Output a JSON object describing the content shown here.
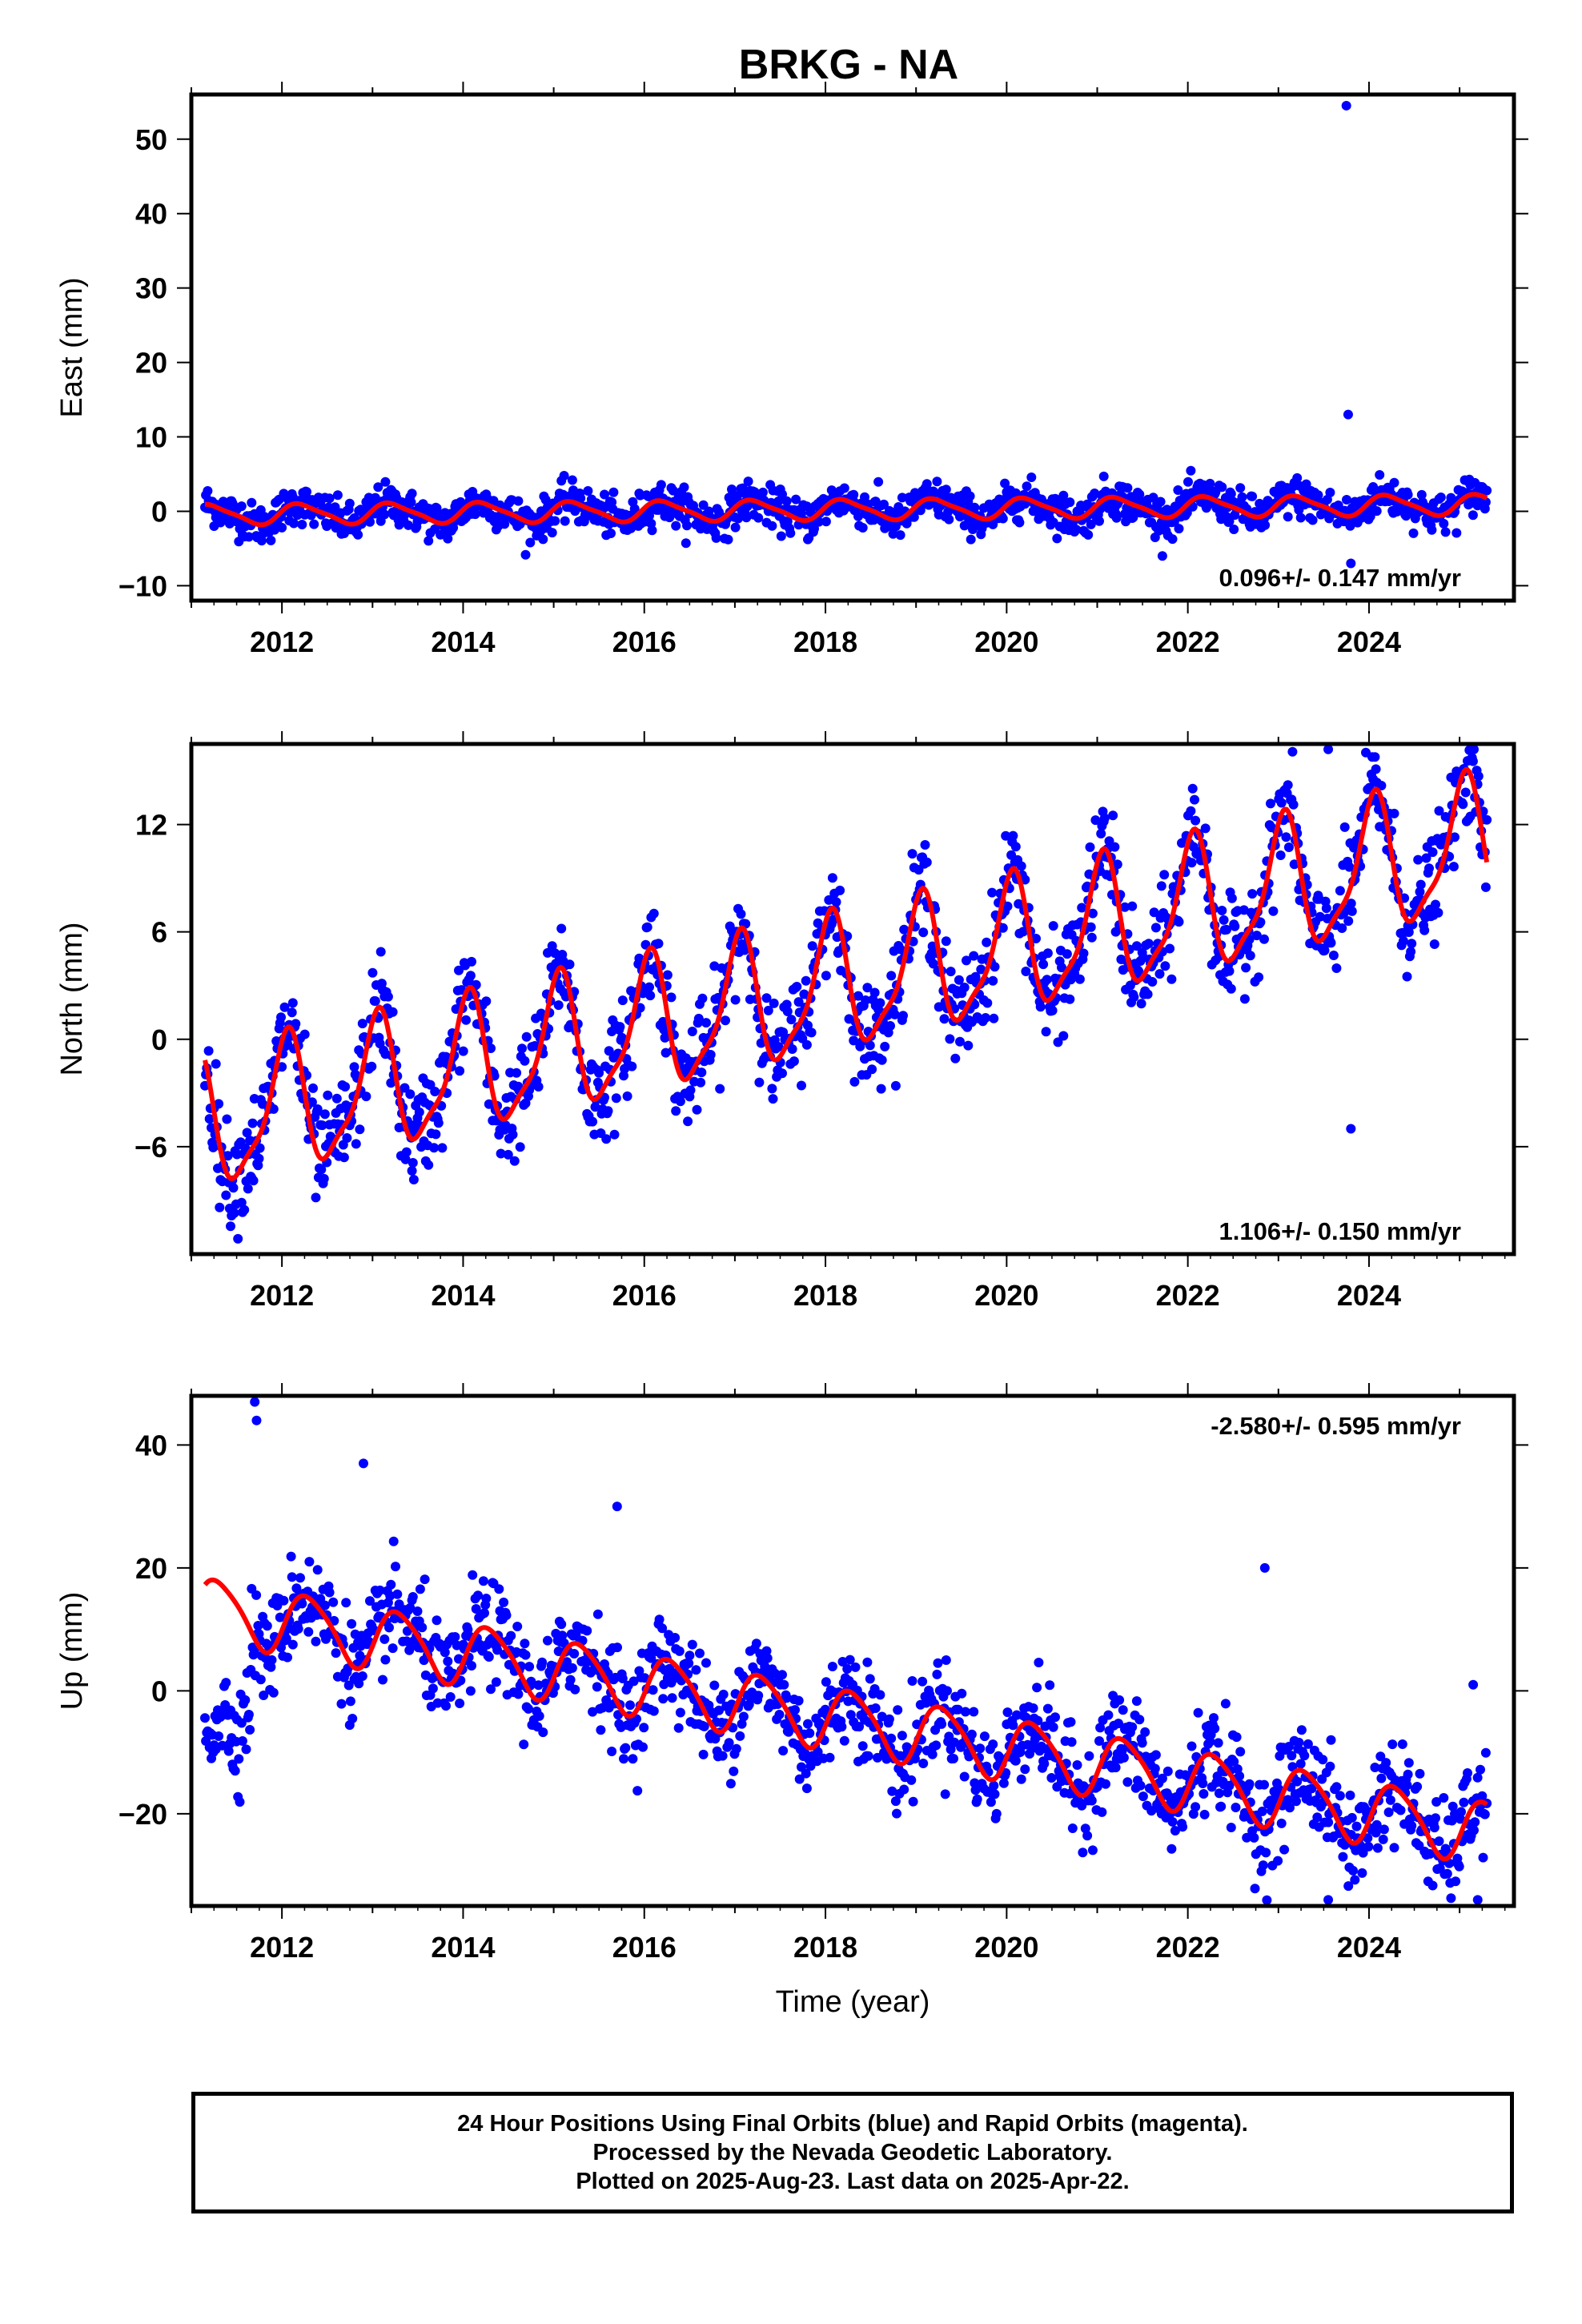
{
  "title": "BRKG - NA",
  "colors": {
    "data": "#0000ff",
    "model": "#ff0000",
    "frame": "#000000"
  },
  "footer": {
    "line1": "24 Hour Positions Using Final Orbits (blue) and Rapid Orbits (magenta).",
    "line2": "Processed by the Nevada Geodetic Laboratory.",
    "line3": "Plotted on 2025-Aug-23. Last data on 2025-Apr-22."
  },
  "chart_data": [
    {
      "type": "scatter",
      "ylabel": "East (mm)",
      "xlabel": "",
      "xlim": [
        2011.0,
        2025.6
      ],
      "ylim": [
        -12,
        56
      ],
      "xticks": [
        2012,
        2014,
        2016,
        2018,
        2020,
        2022,
        2024
      ],
      "yticks": [
        -10,
        0,
        10,
        20,
        30,
        40,
        50
      ],
      "rate_text": "0.096+/- 0.147 mm/yr",
      "rate_position": "bottom-right",
      "data_span": [
        2011.15,
        2025.3
      ],
      "model": {
        "offset": -0.45,
        "rate": 0.096,
        "annual_amp": 1.3,
        "annual_phase": 0.2,
        "semi_amp": 0.3,
        "semi_phase": 0.5
      },
      "scatter_sd": 1.3,
      "outliers": [
        [
          2023.75,
          54.5
        ],
        [
          2023.77,
          13
        ],
        [
          2023.8,
          -7
        ]
      ]
    },
    {
      "type": "scatter",
      "ylabel": "North (mm)",
      "xlabel": "",
      "xlim": [
        2011.0,
        2025.6
      ],
      "ylim": [
        -12,
        16.5
      ],
      "xticks": [
        2012,
        2014,
        2016,
        2018,
        2020,
        2022,
        2024
      ],
      "yticks": [
        -6,
        0,
        6,
        12
      ],
      "rate_text": "1.106+/- 0.150 mm/yr",
      "rate_position": "bottom-right",
      "data_span": [
        2011.15,
        2025.3
      ],
      "model": {
        "offset": -4.8,
        "rate": 1.106,
        "annual_amp": 3.6,
        "annual_phase": 1.3,
        "semi_amp": 1.0,
        "semi_phase": 0.3
      },
      "scatter_sd": 1.4,
      "outliers": [
        [
          2023.55,
          16.2
        ],
        [
          2023.8,
          -5
        ]
      ]
    },
    {
      "type": "scatter",
      "ylabel": "Up (mm)",
      "xlabel": "Time (year)",
      "xlim": [
        2011.0,
        2025.6
      ],
      "ylim": [
        -35,
        48
      ],
      "xticks": [
        2012,
        2014,
        2016,
        2018,
        2020,
        2022,
        2024
      ],
      "yticks": [
        -20,
        0,
        20,
        40
      ],
      "rate_text": "-2.580+/- 0.595 mm/yr",
      "rate_position": "top-right",
      "data_span": [
        2011.15,
        2025.3
      ],
      "model": {
        "offset": 13.5,
        "rate": -2.58,
        "annual_amp": 5.0,
        "annual_phase": -0.3,
        "semi_amp": 0.8,
        "semi_phase": 0.0
      },
      "scatter_sd": 4.0,
      "early_segment": {
        "end": 2011.65,
        "offset": -5.0
      },
      "outliers": [
        [
          2011.7,
          47
        ],
        [
          2011.72,
          44
        ],
        [
          2012.9,
          37
        ],
        [
          2015.7,
          30
        ],
        [
          2022.85,
          20
        ],
        [
          2023.55,
          -34
        ],
        [
          2025.15,
          1
        ],
        [
          2025.2,
          -34
        ]
      ]
    }
  ]
}
